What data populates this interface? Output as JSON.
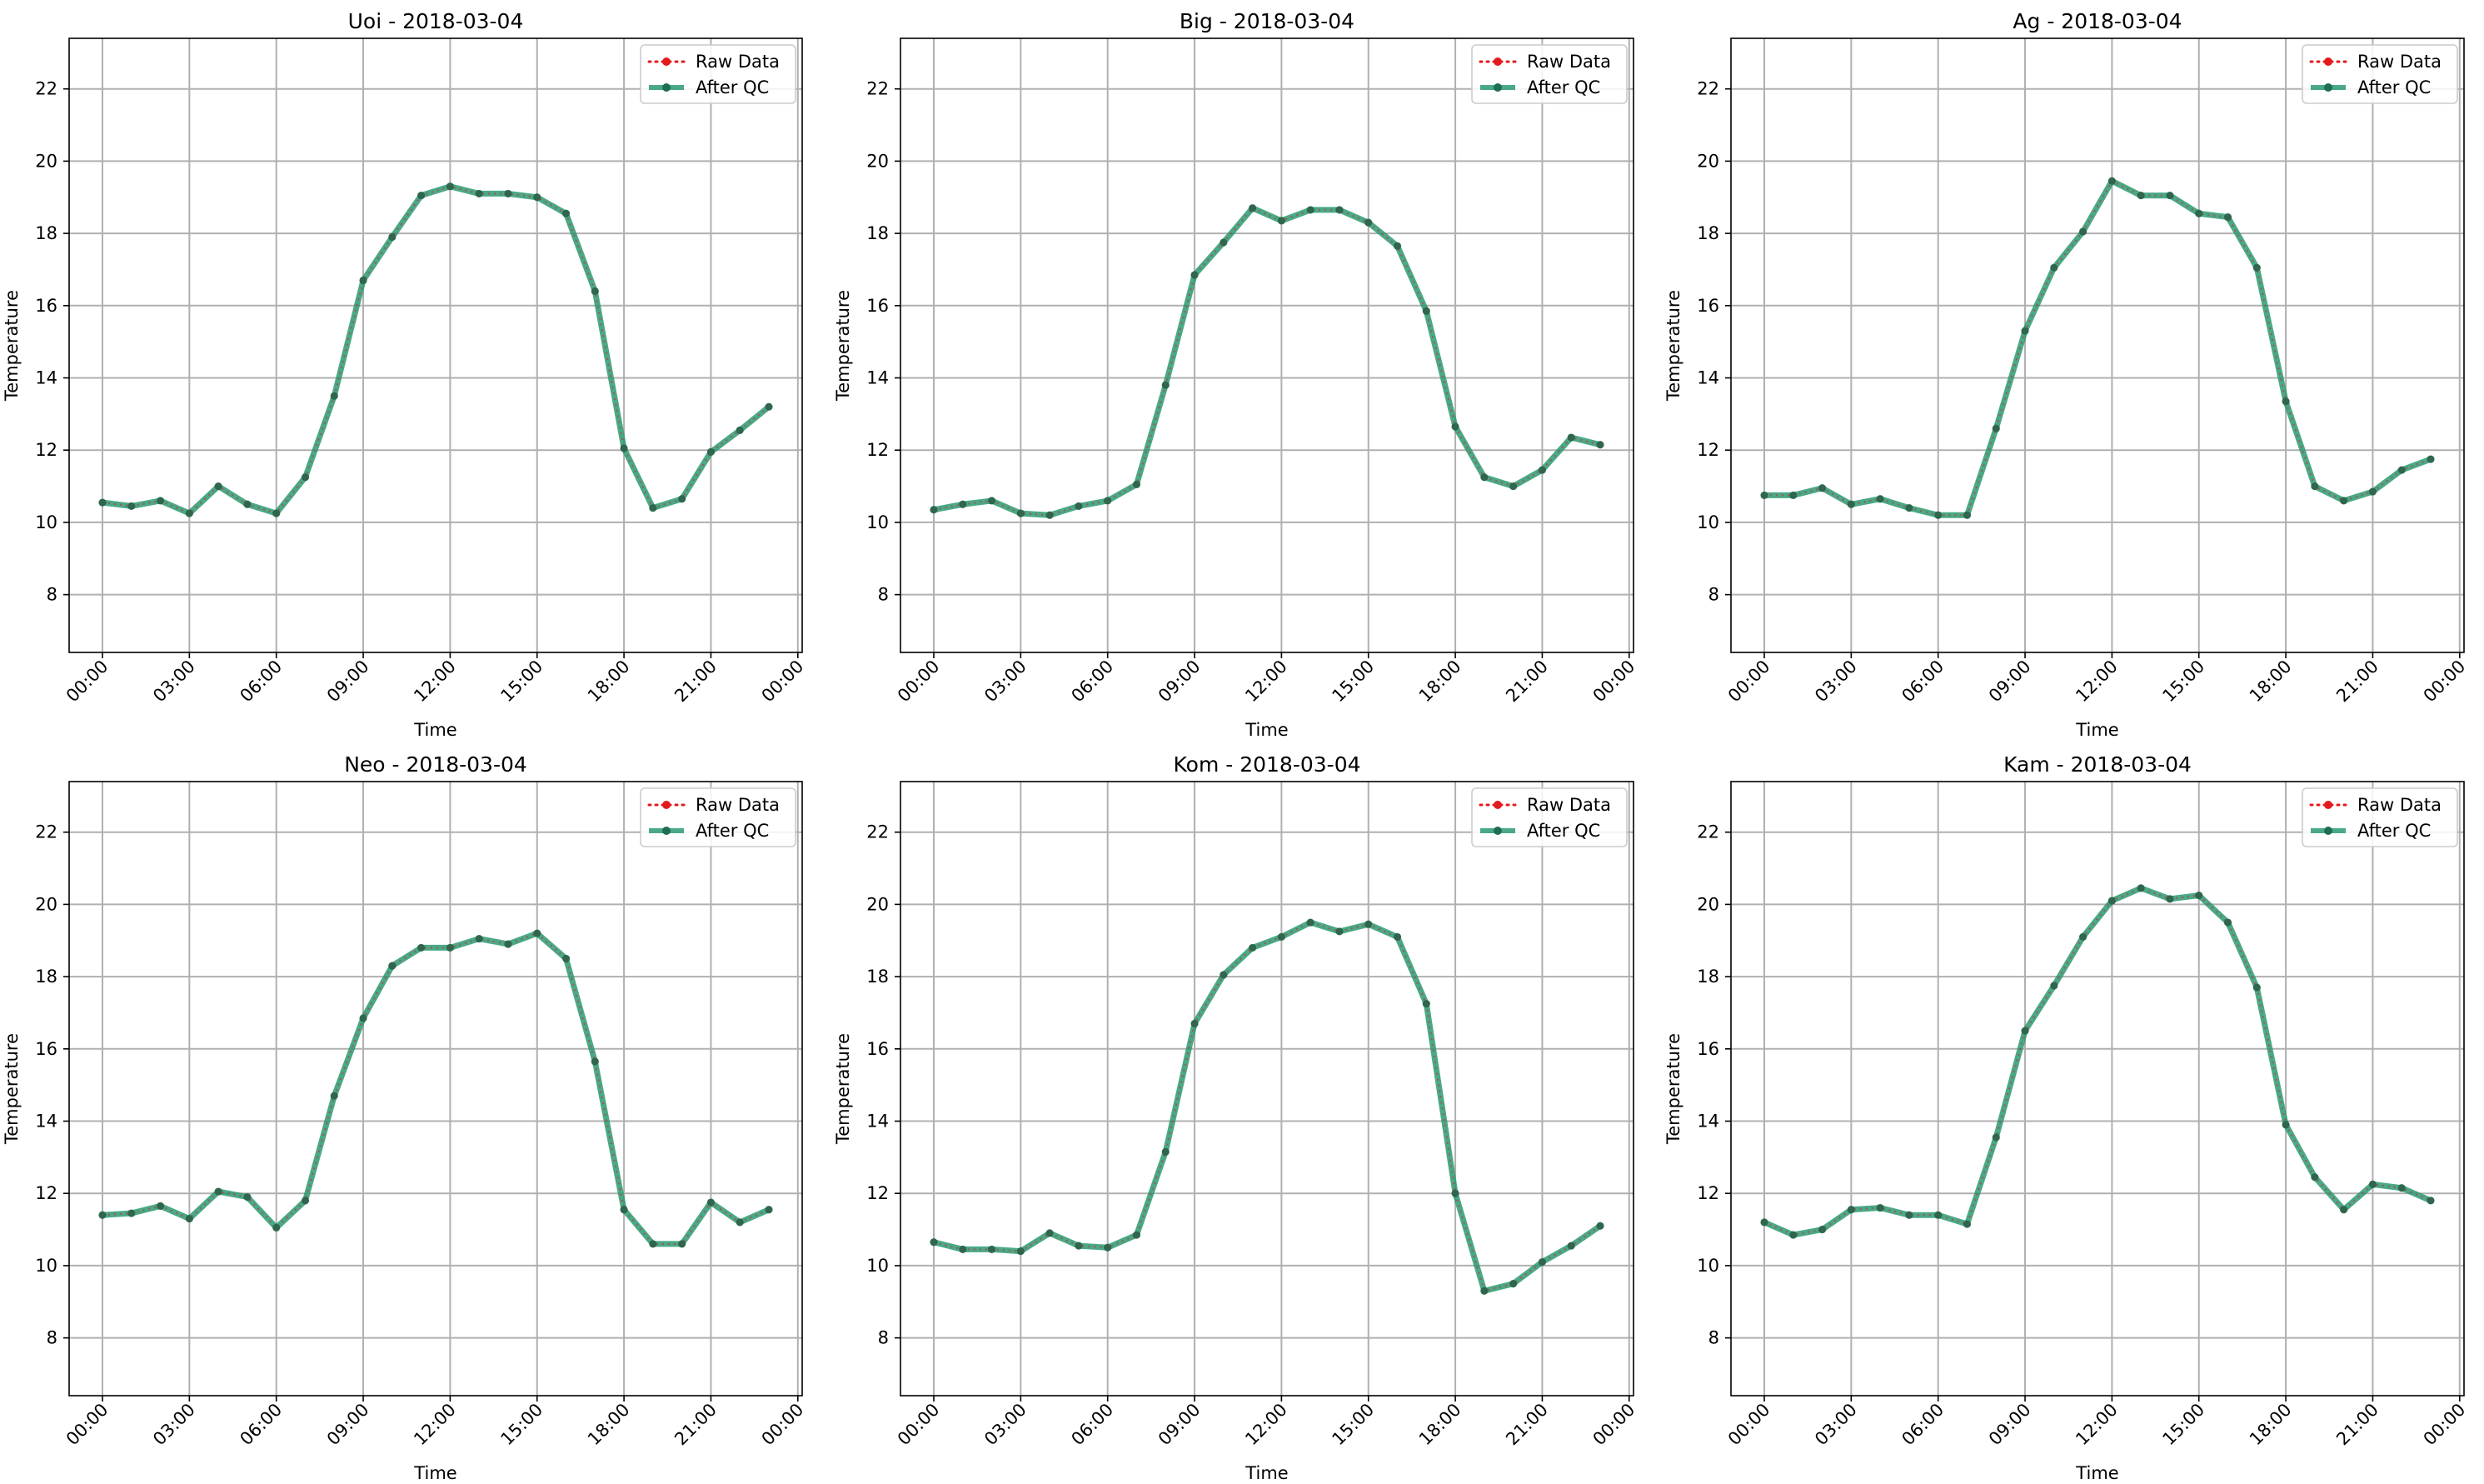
{
  "figure": {
    "title": "",
    "legend": {
      "raw_label": "Raw Data",
      "qc_label": "After QC",
      "placement": "upper-right"
    }
  },
  "chart_data": [
    {
      "type": "line",
      "title": "Uoi - 2018-03-04",
      "xlabel": "Time",
      "ylabel": "Temperature",
      "x_ticks": [
        "00:00",
        "03:00",
        "06:00",
        "09:00",
        "12:00",
        "15:00",
        "18:00",
        "21:00",
        "00:00"
      ],
      "y_ticks": [
        8,
        10,
        12,
        14,
        16,
        18,
        20,
        22
      ],
      "ylim": [
        6.4,
        23.4
      ],
      "xlim_hours": [
        -1.15,
        24.15
      ],
      "grid": true,
      "legend": "upper-right",
      "x_hours": [
        0,
        1,
        2,
        3,
        4,
        5,
        6,
        7,
        8,
        9,
        10,
        11,
        12,
        13,
        14,
        15,
        16,
        17,
        18,
        19,
        20,
        21,
        22,
        23
      ],
      "series": [
        {
          "name": "Raw Data",
          "values": [
            10.55,
            10.45,
            10.6,
            10.25,
            11.0,
            10.5,
            10.25,
            11.25,
            13.5,
            16.7,
            17.9,
            19.05,
            19.3,
            19.1,
            19.1,
            19.0,
            18.55,
            16.4,
            12.05,
            10.4,
            10.65,
            11.95,
            12.55,
            13.2
          ]
        },
        {
          "name": "After QC",
          "values": [
            10.55,
            10.45,
            10.6,
            10.25,
            11.0,
            10.5,
            10.25,
            11.25,
            13.5,
            16.7,
            17.9,
            19.05,
            19.3,
            19.1,
            19.1,
            19.0,
            18.55,
            16.4,
            12.05,
            10.4,
            10.65,
            11.95,
            12.55,
            13.2
          ]
        }
      ]
    },
    {
      "type": "line",
      "title": "Big - 2018-03-04",
      "xlabel": "Time",
      "ylabel": "Temperature",
      "x_ticks": [
        "00:00",
        "03:00",
        "06:00",
        "09:00",
        "12:00",
        "15:00",
        "18:00",
        "21:00",
        "00:00"
      ],
      "y_ticks": [
        8,
        10,
        12,
        14,
        16,
        18,
        20,
        22
      ],
      "ylim": [
        6.4,
        23.4
      ],
      "xlim_hours": [
        -1.15,
        24.15
      ],
      "grid": true,
      "legend": "upper-right",
      "x_hours": [
        0,
        1,
        2,
        3,
        4,
        5,
        6,
        7,
        8,
        9,
        10,
        11,
        12,
        13,
        14,
        15,
        16,
        17,
        18,
        19,
        20,
        21,
        22,
        23
      ],
      "series": [
        {
          "name": "Raw Data",
          "values": [
            10.35,
            10.5,
            10.6,
            10.25,
            10.2,
            10.45,
            10.6,
            11.05,
            13.8,
            16.85,
            17.75,
            18.7,
            18.35,
            18.65,
            18.65,
            18.3,
            17.65,
            15.85,
            12.65,
            11.25,
            11.0,
            11.45,
            12.35,
            12.15
          ]
        },
        {
          "name": "After QC",
          "values": [
            10.35,
            10.5,
            10.6,
            10.25,
            10.2,
            10.45,
            10.6,
            11.05,
            13.8,
            16.85,
            17.75,
            18.7,
            18.35,
            18.65,
            18.65,
            18.3,
            17.65,
            15.85,
            12.65,
            11.25,
            11.0,
            11.45,
            12.35,
            12.15
          ]
        }
      ]
    },
    {
      "type": "line",
      "title": "Ag - 2018-03-04",
      "xlabel": "Time",
      "ylabel": "Temperature",
      "x_ticks": [
        "00:00",
        "03:00",
        "06:00",
        "09:00",
        "12:00",
        "15:00",
        "18:00",
        "21:00",
        "00:00"
      ],
      "y_ticks": [
        8,
        10,
        12,
        14,
        16,
        18,
        20,
        22
      ],
      "ylim": [
        6.4,
        23.4
      ],
      "xlim_hours": [
        -1.15,
        24.15
      ],
      "grid": true,
      "legend": "upper-right",
      "x_hours": [
        0,
        1,
        2,
        3,
        4,
        5,
        6,
        7,
        8,
        9,
        10,
        11,
        12,
        13,
        14,
        15,
        16,
        17,
        18,
        19,
        20,
        21,
        22,
        23
      ],
      "series": [
        {
          "name": "Raw Data",
          "values": [
            10.75,
            10.75,
            10.95,
            10.5,
            10.65,
            10.4,
            10.2,
            10.2,
            12.6,
            15.3,
            17.05,
            18.05,
            19.45,
            19.05,
            19.05,
            18.55,
            18.45,
            17.05,
            13.35,
            11.0,
            10.6,
            10.85,
            11.45,
            11.75
          ]
        },
        {
          "name": "After QC",
          "values": [
            10.75,
            10.75,
            10.95,
            10.5,
            10.65,
            10.4,
            10.2,
            10.2,
            12.6,
            15.3,
            17.05,
            18.05,
            19.45,
            19.05,
            19.05,
            18.55,
            18.45,
            17.05,
            13.35,
            11.0,
            10.6,
            10.85,
            11.45,
            11.75
          ]
        }
      ]
    },
    {
      "type": "line",
      "title": "Neo - 2018-03-04",
      "xlabel": "Time",
      "ylabel": "Temperature",
      "x_ticks": [
        "00:00",
        "03:00",
        "06:00",
        "09:00",
        "12:00",
        "15:00",
        "18:00",
        "21:00",
        "00:00"
      ],
      "y_ticks": [
        8,
        10,
        12,
        14,
        16,
        18,
        20,
        22
      ],
      "ylim": [
        6.4,
        23.4
      ],
      "xlim_hours": [
        -1.15,
        24.15
      ],
      "grid": true,
      "legend": "upper-right",
      "x_hours": [
        0,
        1,
        2,
        3,
        4,
        5,
        6,
        7,
        8,
        9,
        10,
        11,
        12,
        13,
        14,
        15,
        16,
        17,
        18,
        19,
        20,
        21,
        22,
        23
      ],
      "series": [
        {
          "name": "Raw Data",
          "values": [
            11.4,
            11.45,
            11.65,
            11.3,
            12.05,
            11.9,
            11.05,
            11.8,
            14.7,
            16.85,
            18.3,
            18.8,
            18.8,
            19.05,
            18.9,
            19.2,
            18.5,
            15.65,
            11.55,
            10.6,
            10.6,
            11.75,
            11.2,
            11.55
          ]
        },
        {
          "name": "After QC",
          "values": [
            11.4,
            11.45,
            11.65,
            11.3,
            12.05,
            11.9,
            11.05,
            11.8,
            14.7,
            16.85,
            18.3,
            18.8,
            18.8,
            19.05,
            18.9,
            19.2,
            18.5,
            15.65,
            11.55,
            10.6,
            10.6,
            11.75,
            11.2,
            11.55
          ]
        }
      ]
    },
    {
      "type": "line",
      "title": "Kom - 2018-03-04",
      "xlabel": "Time",
      "ylabel": "Temperature",
      "x_ticks": [
        "00:00",
        "03:00",
        "06:00",
        "09:00",
        "12:00",
        "15:00",
        "18:00",
        "21:00",
        "00:00"
      ],
      "y_ticks": [
        8,
        10,
        12,
        14,
        16,
        18,
        20,
        22
      ],
      "ylim": [
        6.4,
        23.4
      ],
      "xlim_hours": [
        -1.15,
        24.15
      ],
      "grid": true,
      "legend": "upper-right",
      "x_hours": [
        0,
        1,
        2,
        3,
        4,
        5,
        6,
        7,
        8,
        9,
        10,
        11,
        12,
        13,
        14,
        15,
        16,
        17,
        18,
        19,
        20,
        21,
        22,
        23
      ],
      "series": [
        {
          "name": "Raw Data",
          "values": [
            10.65,
            10.45,
            10.45,
            10.4,
            10.9,
            10.55,
            10.5,
            10.85,
            13.15,
            16.7,
            18.05,
            18.8,
            19.1,
            19.5,
            19.25,
            19.45,
            19.1,
            17.25,
            12.0,
            9.3,
            9.5,
            10.1,
            10.55,
            11.1
          ]
        },
        {
          "name": "After QC",
          "values": [
            10.65,
            10.45,
            10.45,
            10.4,
            10.9,
            10.55,
            10.5,
            10.85,
            13.15,
            16.7,
            18.05,
            18.8,
            19.1,
            19.5,
            19.25,
            19.45,
            19.1,
            17.25,
            12.0,
            9.3,
            9.5,
            10.1,
            10.55,
            11.1
          ]
        }
      ]
    },
    {
      "type": "line",
      "title": "Kam - 2018-03-04",
      "xlabel": "Time",
      "ylabel": "Temperature",
      "x_ticks": [
        "00:00",
        "03:00",
        "06:00",
        "09:00",
        "12:00",
        "15:00",
        "18:00",
        "21:00",
        "00:00"
      ],
      "y_ticks": [
        8,
        10,
        12,
        14,
        16,
        18,
        20,
        22
      ],
      "ylim": [
        6.4,
        23.4
      ],
      "xlim_hours": [
        -1.15,
        24.15
      ],
      "grid": true,
      "legend": "upper-right",
      "x_hours": [
        0,
        1,
        2,
        3,
        4,
        5,
        6,
        7,
        8,
        9,
        10,
        11,
        12,
        13,
        14,
        15,
        16,
        17,
        18,
        19,
        20,
        21,
        22,
        23
      ],
      "series": [
        {
          "name": "Raw Data",
          "values": [
            11.2,
            10.85,
            11.0,
            11.55,
            11.6,
            11.4,
            11.4,
            11.15,
            13.55,
            16.5,
            17.75,
            19.1,
            20.1,
            20.45,
            20.15,
            20.25,
            19.5,
            17.7,
            13.9,
            12.45,
            11.55,
            12.25,
            12.15,
            11.8
          ]
        },
        {
          "name": "After QC",
          "values": [
            11.2,
            10.85,
            11.0,
            11.55,
            11.6,
            11.4,
            11.4,
            11.15,
            13.55,
            16.5,
            17.75,
            19.1,
            20.1,
            20.45,
            20.15,
            20.25,
            19.5,
            17.7,
            13.9,
            12.45,
            11.55,
            12.25,
            12.15,
            11.8
          ]
        }
      ]
    }
  ],
  "colors": {
    "raw": "#e41a1c",
    "qc_line": "#2a9a72",
    "qc_marker": "#1d6e52",
    "grid": "#b0b0b0",
    "axes": "#000000"
  }
}
